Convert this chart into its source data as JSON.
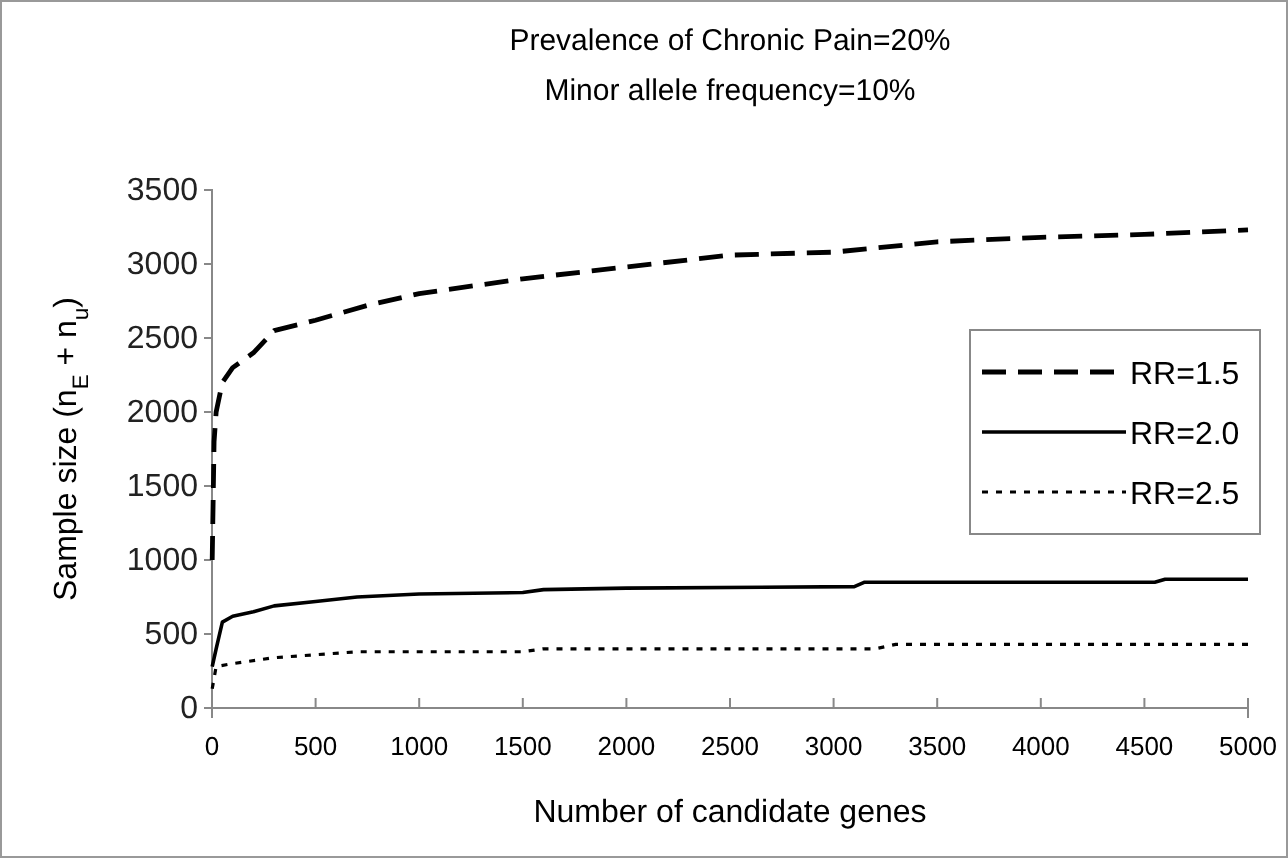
{
  "chart_data": {
    "type": "line",
    "title": "Prevalence of Chronic Pain=20%",
    "subtitle": "Minor allele frequency=10%",
    "xlabel": "Number of candidate genes",
    "ylabel": "Sample size (n$_{E}$ + n$_{u}$)",
    "xlim": [
      0,
      5000
    ],
    "xticks": [
      0,
      500,
      1000,
      1500,
      2000,
      2500,
      3000,
      3500,
      4000,
      4500,
      5000
    ],
    "ylim": [
      0,
      3500
    ],
    "yticks": [
      0,
      500,
      1000,
      1500,
      2000,
      2500,
      3000,
      3500
    ],
    "grid": false,
    "legend": "right",
    "marker": "none",
    "series": [
      {
        "name": "RR=1.5",
        "color": "#000000",
        "line_style": "dashed",
        "x": [
          1,
          10,
          20,
          50,
          100,
          200,
          300,
          500,
          750,
          1000,
          1500,
          2000,
          2500,
          3000,
          3500,
          4000,
          4500,
          5000
        ],
        "values": [
          1000,
          1800,
          2000,
          2200,
          2300,
          2400,
          2550,
          2620,
          2720,
          2800,
          2900,
          2980,
          3060,
          3080,
          3150,
          3180,
          3200,
          3230
        ]
      },
      {
        "name": "RR=2.0",
        "color": "#000000",
        "line_style": "solid",
        "x": [
          1,
          20,
          50,
          100,
          200,
          300,
          500,
          700,
          1000,
          1500,
          1600,
          2000,
          3100,
          3150,
          4550,
          4600,
          5000
        ],
        "values": [
          280,
          400,
          580,
          620,
          650,
          690,
          720,
          750,
          770,
          780,
          800,
          810,
          820,
          850,
          850,
          870,
          870
        ]
      },
      {
        "name": "RR=2.5",
        "color": "#000000",
        "line_style": "dotted",
        "x": [
          1,
          20,
          100,
          300,
          500,
          700,
          1500,
          1600,
          3200,
          3300,
          5000
        ],
        "values": [
          130,
          280,
          300,
          340,
          360,
          380,
          380,
          400,
          400,
          430,
          430
        ]
      }
    ]
  }
}
